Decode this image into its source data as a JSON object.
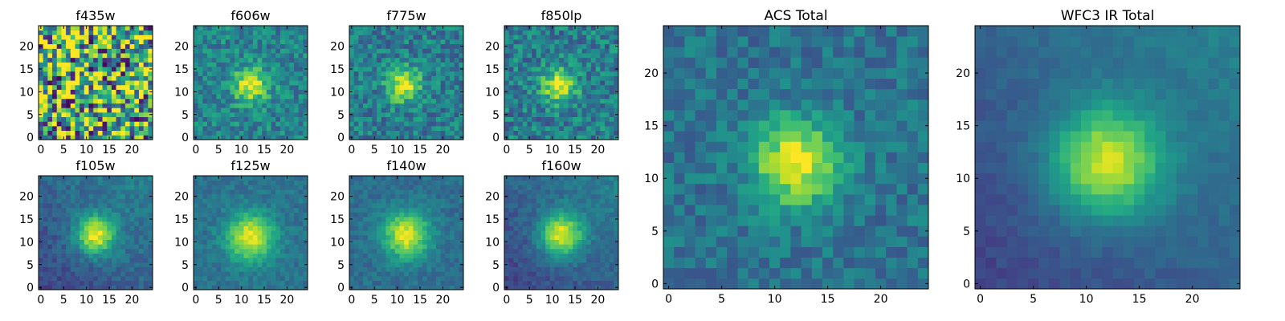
{
  "chart_data": [
    {
      "type": "heatmap",
      "title": "f435w",
      "x_ticks": [
        0,
        5,
        10,
        15,
        20
      ],
      "y_ticks": [
        0,
        5,
        10,
        15,
        20
      ],
      "xlim": [
        -0.5,
        24.5
      ],
      "ylim": [
        -0.5,
        24.5
      ],
      "colormap": "viridis",
      "center": [
        12,
        12
      ],
      "peak": 0.0,
      "noise": 1.0,
      "background": 0.62,
      "sigma": 3.0,
      "seed": 11
    },
    {
      "type": "heatmap",
      "title": "f606w",
      "x_ticks": [
        0,
        5,
        10,
        15,
        20
      ],
      "y_ticks": [
        0,
        5,
        10,
        15,
        20
      ],
      "xlim": [
        -0.5,
        24.5
      ],
      "ylim": [
        -0.5,
        24.5
      ],
      "colormap": "viridis",
      "center": [
        12,
        11.5
      ],
      "peak": 0.55,
      "noise": 0.28,
      "background": 0.45,
      "sigma": 2.6,
      "seed": 23
    },
    {
      "type": "heatmap",
      "title": "f775w",
      "x_ticks": [
        0,
        5,
        10,
        15,
        20
      ],
      "y_ticks": [
        0,
        5,
        10,
        15,
        20
      ],
      "xlim": [
        -0.5,
        24.5
      ],
      "ylim": [
        -0.5,
        24.5
      ],
      "colormap": "viridis",
      "center": [
        11.5,
        11.5
      ],
      "peak": 0.55,
      "noise": 0.3,
      "background": 0.42,
      "sigma": 2.6,
      "seed": 37
    },
    {
      "type": "heatmap",
      "title": "f850lp",
      "x_ticks": [
        0,
        5,
        10,
        15,
        20
      ],
      "y_ticks": [
        0,
        5,
        10,
        15,
        20
      ],
      "xlim": [
        -0.5,
        24.5
      ],
      "ylim": [
        -0.5,
        24.5
      ],
      "colormap": "viridis",
      "center": [
        11.5,
        11.5
      ],
      "peak": 0.55,
      "noise": 0.32,
      "background": 0.42,
      "sigma": 2.6,
      "seed": 41
    },
    {
      "type": "heatmap",
      "title": "f105w",
      "x_ticks": [
        0,
        5,
        10,
        15,
        20
      ],
      "y_ticks": [
        0,
        5,
        10,
        15,
        20
      ],
      "xlim": [
        -0.5,
        24.5
      ],
      "ylim": [
        -0.5,
        24.5
      ],
      "colormap": "viridis",
      "center": [
        12,
        11.5
      ],
      "peak": 0.65,
      "noise": 0.14,
      "background": 0.33,
      "sigma": 3.0,
      "seed": 53
    },
    {
      "type": "heatmap",
      "title": "f125w",
      "x_ticks": [
        0,
        5,
        10,
        15,
        20
      ],
      "y_ticks": [
        0,
        5,
        10,
        15,
        20
      ],
      "xlim": [
        -0.5,
        24.5
      ],
      "ylim": [
        -0.5,
        24.5
      ],
      "colormap": "viridis",
      "center": [
        12,
        11
      ],
      "peak": 0.6,
      "noise": 0.13,
      "background": 0.38,
      "sigma": 3.6,
      "seed": 61
    },
    {
      "type": "heatmap",
      "title": "f140w",
      "x_ticks": [
        0,
        5,
        10,
        15,
        20
      ],
      "y_ticks": [
        0,
        5,
        10,
        15,
        20
      ],
      "xlim": [
        -0.5,
        24.5
      ],
      "ylim": [
        -0.5,
        24.5
      ],
      "colormap": "viridis",
      "center": [
        12,
        11.5
      ],
      "peak": 0.6,
      "noise": 0.13,
      "background": 0.36,
      "sigma": 3.6,
      "seed": 71
    },
    {
      "type": "heatmap",
      "title": "f160w",
      "x_ticks": [
        0,
        5,
        10,
        15,
        20
      ],
      "y_ticks": [
        0,
        5,
        10,
        15,
        20
      ],
      "xlim": [
        -0.5,
        24.5
      ],
      "ylim": [
        -0.5,
        24.5
      ],
      "colormap": "viridis",
      "center": [
        12,
        11.5
      ],
      "peak": 0.65,
      "noise": 0.12,
      "background": 0.32,
      "sigma": 3.3,
      "seed": 83
    },
    {
      "type": "heatmap",
      "title": "ACS Total",
      "x_ticks": [
        0,
        5,
        10,
        15,
        20
      ],
      "y_ticks": [
        0,
        5,
        10,
        15,
        20
      ],
      "xlim": [
        -0.5,
        24.5
      ],
      "ylim": [
        -0.5,
        24.5
      ],
      "colormap": "viridis",
      "center": [
        12,
        11.5
      ],
      "peak": 0.62,
      "noise": 0.2,
      "background": 0.38,
      "sigma": 2.8,
      "seed": 97
    },
    {
      "type": "heatmap",
      "title": "WFC3 IR Total",
      "x_ticks": [
        0,
        5,
        10,
        15,
        20
      ],
      "y_ticks": [
        0,
        5,
        10,
        15,
        20
      ],
      "xlim": [
        -0.5,
        24.5
      ],
      "ylim": [
        -0.5,
        24.5
      ],
      "colormap": "viridis",
      "center": [
        12,
        11.5
      ],
      "peak": 0.62,
      "noise": 0.07,
      "background": 0.32,
      "sigma": 3.6,
      "seed": 101
    }
  ]
}
